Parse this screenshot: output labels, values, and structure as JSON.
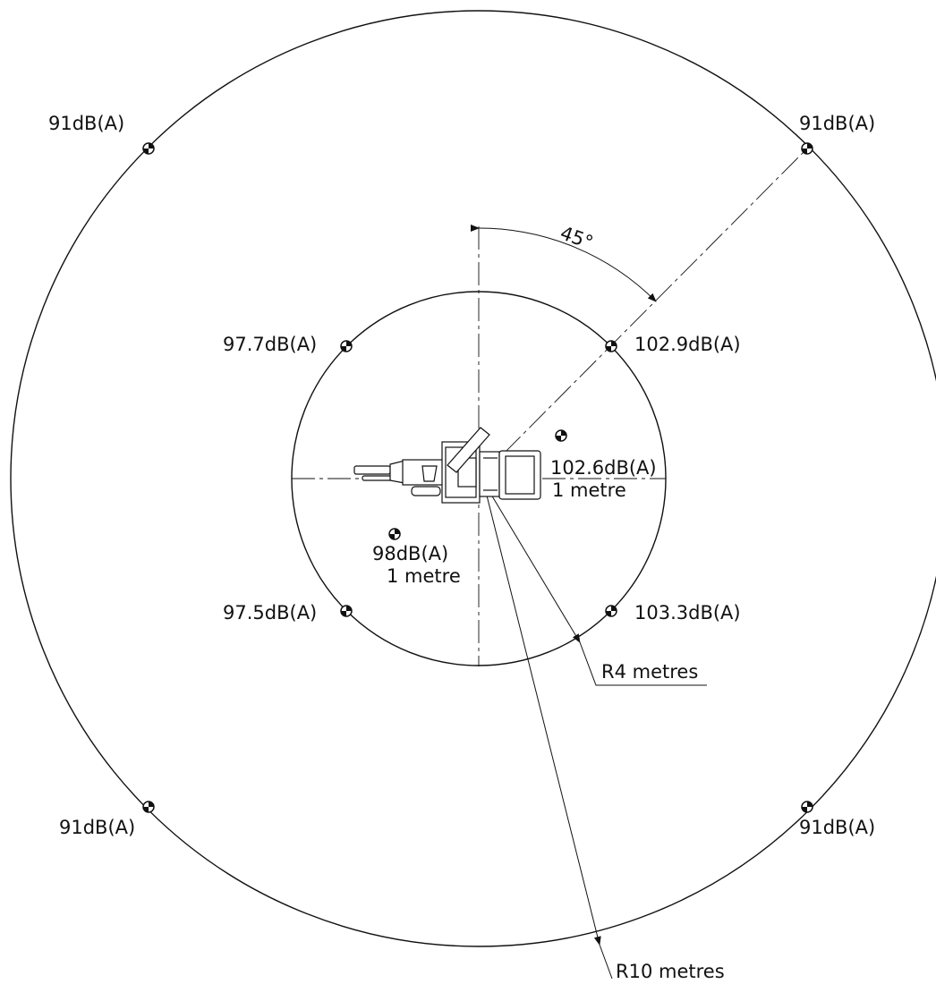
{
  "measurements": {
    "outer_top_left": "91dB(A)",
    "outer_top_right": "91dB(A)",
    "outer_bottom_left": "91dB(A)",
    "outer_bottom_right": "91dB(A)",
    "inner_top_left": "97.7dB(A)",
    "inner_top_right": "102.9dB(A)",
    "inner_bottom_left": "97.5dB(A)",
    "inner_bottom_right": "103.3dB(A)",
    "near_right_value": "102.6dB(A)",
    "near_right_distance": "1 metre",
    "near_left_value": "98dB(A)",
    "near_left_distance": "1 metre"
  },
  "angle_label": "45°",
  "radius_labels": {
    "inner": "R4 metres",
    "outer": "R10 metres"
  },
  "colors": {
    "line": "#111111",
    "background": "#ffffff"
  }
}
